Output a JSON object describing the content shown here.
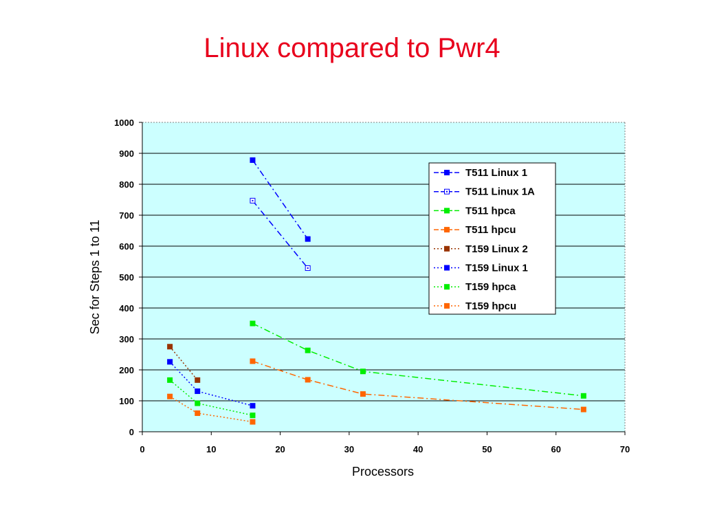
{
  "slide": {
    "title": "Linux compared to Pwr4"
  },
  "chart_data": {
    "type": "scatter",
    "title": "",
    "xlabel": "Processors",
    "ylabel": "Sec for Steps 1 to 11",
    "xlim": [
      0,
      70
    ],
    "ylim": [
      0,
      1000
    ],
    "xticks": [
      0,
      10,
      20,
      30,
      40,
      50,
      60,
      70
    ],
    "yticks": [
      0,
      100,
      200,
      300,
      400,
      500,
      600,
      700,
      800,
      900,
      1000
    ],
    "grid": "horizontal",
    "plot_background": "#ccffff",
    "legend_position": "top-right",
    "series": [
      {
        "name": "T511 Linux 1",
        "x": [
          16,
          24
        ],
        "y": [
          878,
          623
        ],
        "color": "#0000ff",
        "line": "longdashdot",
        "marker": "filled"
      },
      {
        "name": "T511 Linux 1A",
        "x": [
          16,
          24
        ],
        "y": [
          747,
          529
        ],
        "color": "#0000ff",
        "line": "longdashdot",
        "marker": "open"
      },
      {
        "name": "T511 hpca",
        "x": [
          16,
          24,
          32,
          64
        ],
        "y": [
          350,
          263,
          195,
          116
        ],
        "color": "#00ee00",
        "line": "longdashdot",
        "marker": "filled"
      },
      {
        "name": "T511 hpcu",
        "x": [
          16,
          24,
          32,
          64
        ],
        "y": [
          228,
          168,
          122,
          72
        ],
        "color": "#ff6600",
        "line": "longdashdot",
        "marker": "filled"
      },
      {
        "name": "T159 Linux 2",
        "x": [
          4,
          8
        ],
        "y": [
          275,
          167
        ],
        "color": "#993300",
        "line": "dotted",
        "marker": "filled"
      },
      {
        "name": "T159 Linux 1",
        "x": [
          4,
          8,
          16
        ],
        "y": [
          226,
          131,
          84
        ],
        "color": "#0000ff",
        "line": "dotted",
        "marker": "filled"
      },
      {
        "name": "T159 hpca",
        "x": [
          4,
          8,
          16
        ],
        "y": [
          167,
          92,
          53
        ],
        "color": "#00ee00",
        "line": "dotted",
        "marker": "filled"
      },
      {
        "name": "T159 hpcu",
        "x": [
          4,
          8,
          16
        ],
        "y": [
          114,
          60,
          32
        ],
        "color": "#ff6600",
        "line": "dotted",
        "marker": "filled"
      }
    ]
  }
}
